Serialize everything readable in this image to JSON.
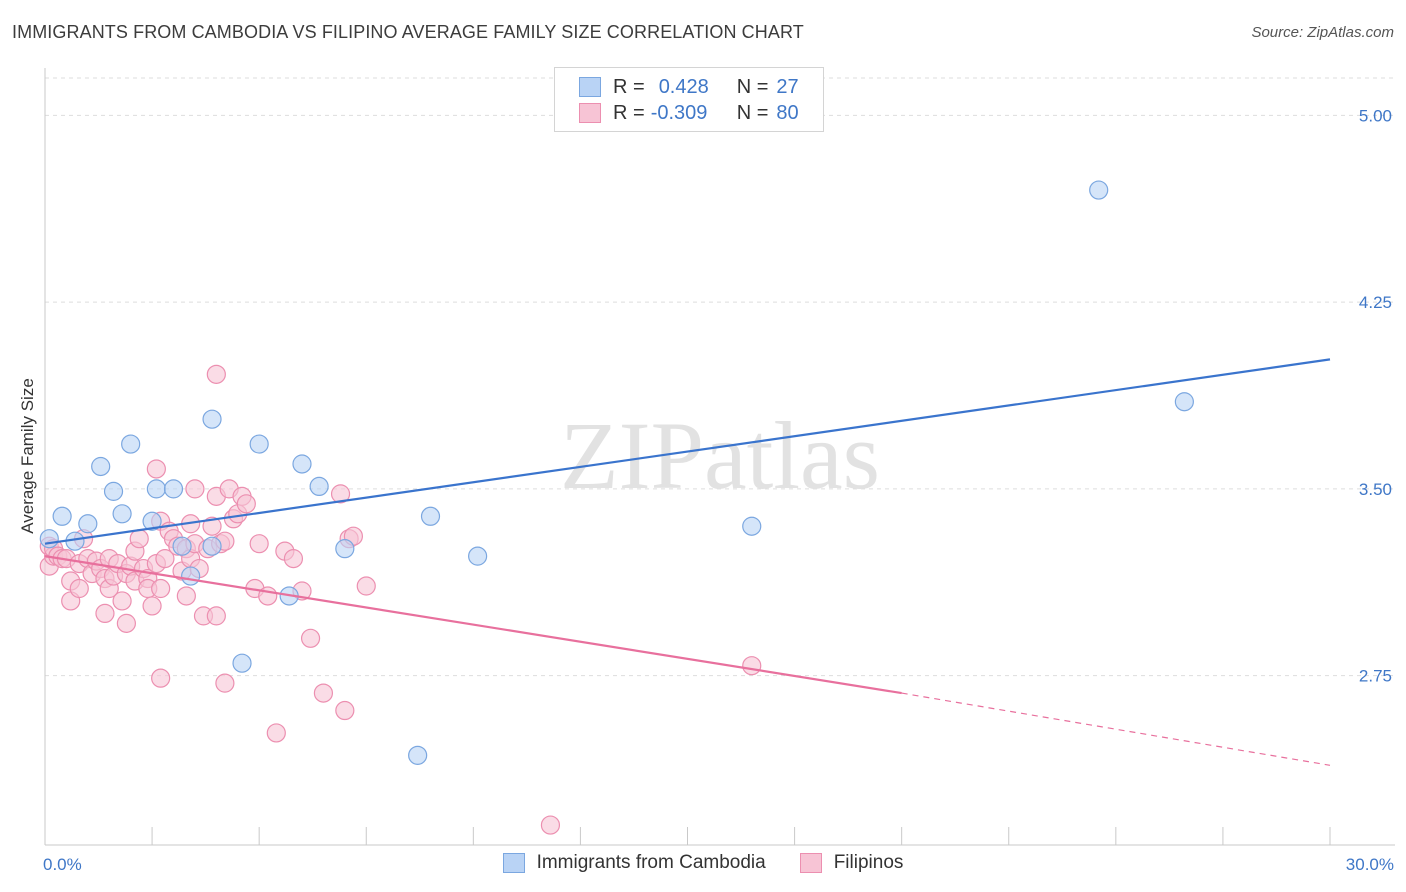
{
  "title": "IMMIGRANTS FROM CAMBODIA VS FILIPINO AVERAGE FAMILY SIZE CORRELATION CHART",
  "source": "Source: ZipAtlas.com",
  "watermark": "ZIPatlas",
  "legend": {
    "rows": [
      {
        "r_label": "R =",
        "r_value": "0.428",
        "n_label": "N =",
        "n_value": "27"
      },
      {
        "r_label": "R =",
        "r_value": "-0.309",
        "n_label": "N =",
        "n_value": "80"
      }
    ]
  },
  "bottom_legend": [
    "Immigrants from Cambodia",
    "Filipinos"
  ],
  "colors": {
    "blue_fill": "#b9d3f5",
    "blue_stroke": "#7ba7e0",
    "blue_line": "#3a74cd",
    "pink_fill": "#f7c4d5",
    "pink_stroke": "#ec8fb0",
    "pink_line": "#e8709d",
    "tick": "#3f77c7",
    "grid": "#dddddd"
  },
  "chart_data": {
    "type": "scatter",
    "title": "IMMIGRANTS FROM CAMBODIA VS FILIPINO AVERAGE FAMILY SIZE CORRELATION CHART",
    "xlabel": "",
    "ylabel": "Average Family Size",
    "xlim": [
      0,
      30
    ],
    "ylim": [
      2.07,
      5.15
    ],
    "x_tick_labels": [
      "0.0%",
      "30.0%"
    ],
    "y_ticks": [
      2.75,
      3.5,
      4.25,
      5.0
    ],
    "y_tick_labels": [
      "2.75",
      "3.50",
      "4.25",
      "5.00"
    ],
    "series": [
      {
        "name": "Immigrants from Cambodia",
        "points": [
          [
            0.1,
            3.3
          ],
          [
            0.4,
            3.39
          ],
          [
            0.7,
            3.29
          ],
          [
            1.0,
            3.36
          ],
          [
            1.3,
            3.59
          ],
          [
            1.6,
            3.49
          ],
          [
            1.8,
            3.4
          ],
          [
            2.0,
            3.68
          ],
          [
            2.6,
            3.5
          ],
          [
            2.5,
            3.37
          ],
          [
            3.0,
            3.5
          ],
          [
            3.2,
            3.27
          ],
          [
            3.4,
            3.15
          ],
          [
            3.9,
            3.78
          ],
          [
            3.9,
            3.27
          ],
          [
            4.6,
            2.8
          ],
          [
            5.0,
            3.68
          ],
          [
            5.7,
            3.07
          ],
          [
            6.0,
            3.6
          ],
          [
            6.4,
            3.51
          ],
          [
            7.0,
            3.26
          ],
          [
            8.7,
            2.43
          ],
          [
            9.0,
            3.39
          ],
          [
            10.1,
            3.23
          ],
          [
            16.5,
            3.35
          ],
          [
            24.6,
            4.7
          ],
          [
            26.6,
            3.85
          ]
        ],
        "trend": {
          "x0": 0,
          "y0": 3.28,
          "x1": 30,
          "y1": 4.02
        }
      },
      {
        "name": "Filipinos",
        "points": [
          [
            0.1,
            3.27
          ],
          [
            0.1,
            3.19
          ],
          [
            0.2,
            3.23
          ],
          [
            0.2,
            3.26
          ],
          [
            0.3,
            3.23
          ],
          [
            0.4,
            3.22
          ],
          [
            0.5,
            3.22
          ],
          [
            0.6,
            3.13
          ],
          [
            0.6,
            3.05
          ],
          [
            0.8,
            3.1
          ],
          [
            0.8,
            3.2
          ],
          [
            0.9,
            3.3
          ],
          [
            1.0,
            3.22
          ],
          [
            1.1,
            3.16
          ],
          [
            1.2,
            3.21
          ],
          [
            1.3,
            3.18
          ],
          [
            1.4,
            3.14
          ],
          [
            1.5,
            3.22
          ],
          [
            1.5,
            3.1
          ],
          [
            1.6,
            3.15
          ],
          [
            1.7,
            3.2
          ],
          [
            1.8,
            3.05
          ],
          [
            1.9,
            3.16
          ],
          [
            1.9,
            2.96
          ],
          [
            2.0,
            3.19
          ],
          [
            2.1,
            3.13
          ],
          [
            2.1,
            3.25
          ],
          [
            2.2,
            3.3
          ],
          [
            2.3,
            3.18
          ],
          [
            2.4,
            3.14
          ],
          [
            2.4,
            3.1
          ],
          [
            2.5,
            3.03
          ],
          [
            2.6,
            3.2
          ],
          [
            2.7,
            3.1
          ],
          [
            2.7,
            3.37
          ],
          [
            2.8,
            3.22
          ],
          [
            2.9,
            3.33
          ],
          [
            3.0,
            3.3
          ],
          [
            2.6,
            3.58
          ],
          [
            2.7,
            2.74
          ],
          [
            3.1,
            3.27
          ],
          [
            3.2,
            3.17
          ],
          [
            3.3,
            3.26
          ],
          [
            3.4,
            3.36
          ],
          [
            3.4,
            3.22
          ],
          [
            3.5,
            3.5
          ],
          [
            3.5,
            3.28
          ],
          [
            3.6,
            3.18
          ],
          [
            3.7,
            2.99
          ],
          [
            3.8,
            3.26
          ],
          [
            3.9,
            3.35
          ],
          [
            4.0,
            3.47
          ],
          [
            4.1,
            3.28
          ],
          [
            4.2,
            3.29
          ],
          [
            4.3,
            3.5
          ],
          [
            4.4,
            3.38
          ],
          [
            4.5,
            3.4
          ],
          [
            4.6,
            3.47
          ],
          [
            4.7,
            3.44
          ],
          [
            4.9,
            3.1
          ],
          [
            4.0,
            2.99
          ],
          [
            4.2,
            2.72
          ],
          [
            4.0,
            3.96
          ],
          [
            5.0,
            3.28
          ],
          [
            5.2,
            3.07
          ],
          [
            5.4,
            2.52
          ],
          [
            5.6,
            3.25
          ],
          [
            5.8,
            3.22
          ],
          [
            6.0,
            3.09
          ],
          [
            6.2,
            2.9
          ],
          [
            6.5,
            2.68
          ],
          [
            6.9,
            3.48
          ],
          [
            7.1,
            3.3
          ],
          [
            7.2,
            3.31
          ],
          [
            7.0,
            2.61
          ],
          [
            7.5,
            3.11
          ],
          [
            11.8,
            2.15
          ],
          [
            16.5,
            2.79
          ],
          [
            3.3,
            3.07
          ],
          [
            1.4,
            3.0
          ]
        ],
        "trend": {
          "x0": 0,
          "y0": 3.23,
          "x1": 20,
          "y1": 2.68
        },
        "trend_dashed": {
          "x0": 20,
          "y0": 2.68,
          "x1": 30,
          "y1": 2.39
        }
      }
    ]
  }
}
